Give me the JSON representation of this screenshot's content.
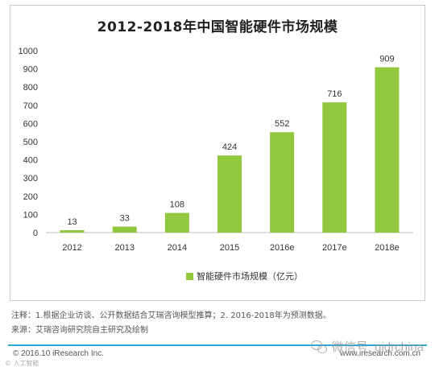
{
  "chart_data": {
    "type": "bar",
    "title": "2012-2018年中国智能硬件市场规模",
    "categories": [
      "2012",
      "2013",
      "2014",
      "2015",
      "2016e",
      "2017e",
      "2018e"
    ],
    "series": [
      {
        "name": "智能硬件市场规模（亿元）",
        "values": [
          13,
          33,
          108,
          424,
          552,
          716,
          909
        ],
        "color": "#92c83e"
      }
    ],
    "data_labels": [
      "13",
      "33",
      "108",
      "424",
      "552",
      "716",
      "909"
    ],
    "ylim": [
      0,
      1000
    ],
    "yticks": [
      0,
      100,
      200,
      300,
      400,
      500,
      600,
      700,
      800,
      900,
      1000
    ],
    "ytick_labels": [
      "0",
      "100",
      "200",
      "300",
      "400",
      "500",
      "600",
      "700",
      "800",
      "900",
      "1000"
    ],
    "xlabel": "",
    "ylabel": "",
    "grid": false,
    "legend": "bottom-center"
  },
  "notes": {
    "line1": "注释：1.根据企业访谈、公开数据结合艾瑞咨询模型推算；2. 2016-2018年为预测数据。",
    "line2": "来源：艾瑞咨询研究院自主研究及绘制"
  },
  "footer": {
    "copyright": "© 2016.10 iResearch Inc.",
    "site": "www.iresearch.com.cn",
    "watermark": "微信号: qidrchina",
    "watermark_left": "© 人工智能"
  },
  "colors": {
    "bar": "#92c83e",
    "rule": "#2aa8d6"
  }
}
